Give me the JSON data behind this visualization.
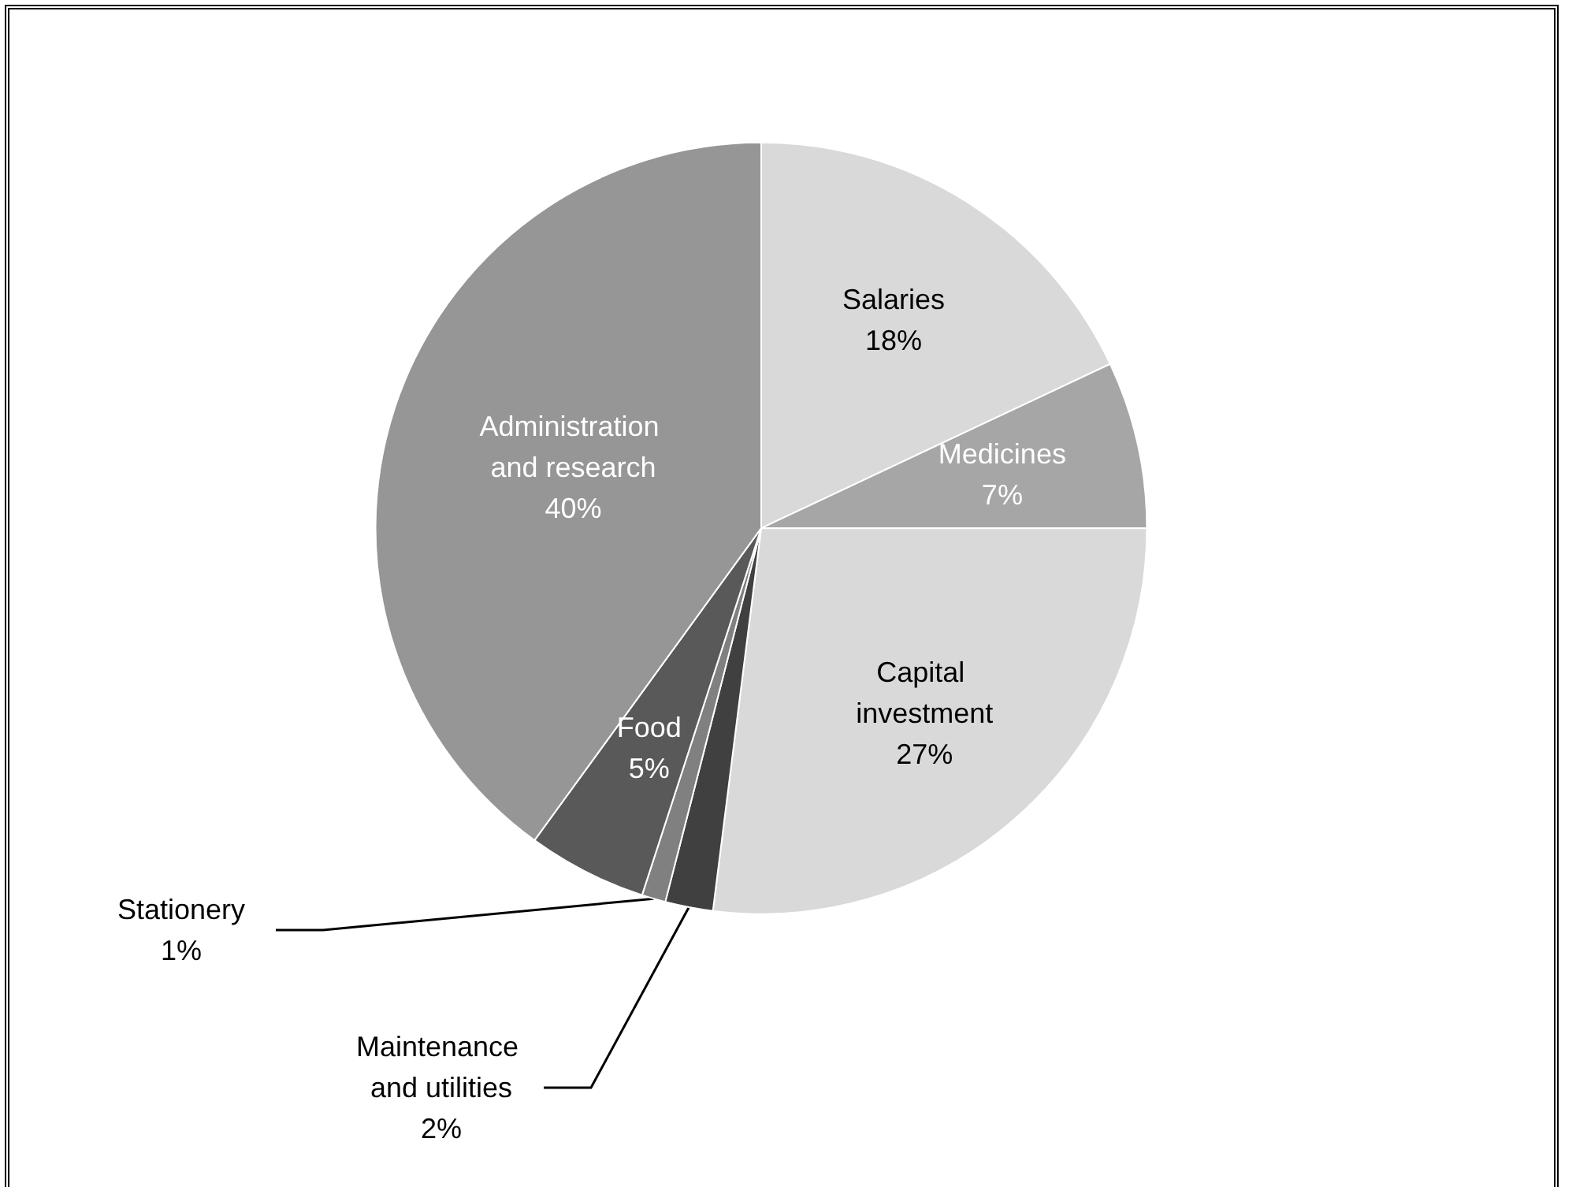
{
  "chart_data": {
    "type": "pie",
    "categories": [
      "Salaries",
      "Medicines",
      "Capital investment",
      "Maintenance and utilities",
      "Stationery",
      "Food",
      "Administration and research"
    ],
    "values": [
      18,
      7,
      27,
      2,
      1,
      5,
      40
    ],
    "colors": [
      "#d9d9d9",
      "#a6a6a6",
      "#d9d9d9",
      "#404040",
      "#808080",
      "#595959",
      "#969696"
    ],
    "value_labels": [
      "18%",
      "7%",
      "27%",
      "2%",
      "1%",
      "5%",
      "40%"
    ],
    "legend": false
  }
}
